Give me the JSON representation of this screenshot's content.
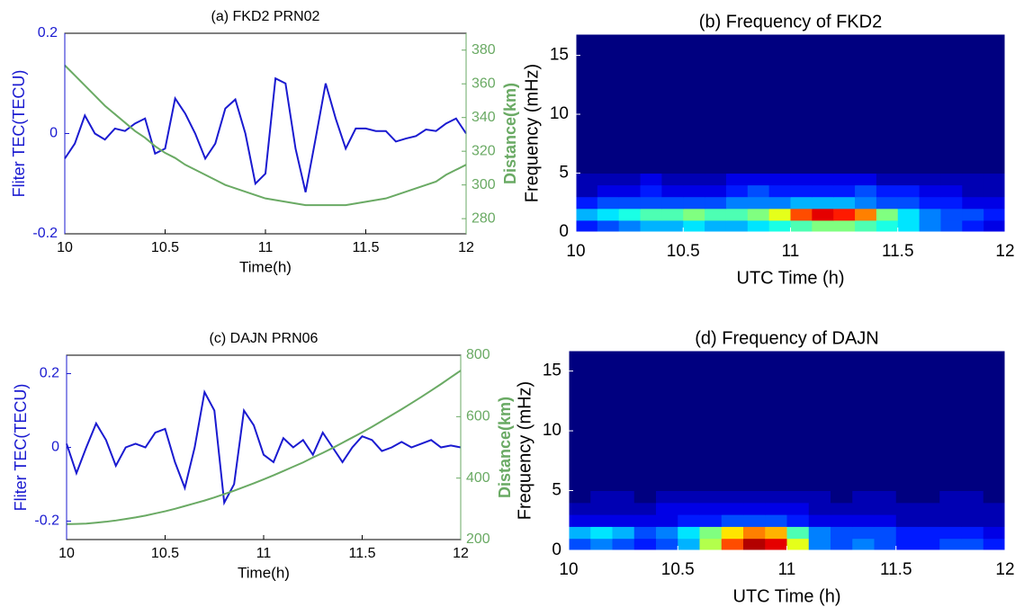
{
  "chart_data": [
    {
      "type": "line",
      "title": "(a) FKD2 PRN02",
      "xlabel": "Time(h)",
      "ylabel": "Fliter TEC(TECU)",
      "y2label": "Distance(km)",
      "x": [
        10,
        10.05,
        10.1,
        10.15,
        10.2,
        10.25,
        10.3,
        10.35,
        10.4,
        10.45,
        10.5,
        10.55,
        10.6,
        10.65,
        10.7,
        10.75,
        10.8,
        10.85,
        10.9,
        10.95,
        11,
        11.05,
        11.1,
        11.15,
        11.2,
        11.25,
        11.3,
        11.35,
        11.4,
        11.45,
        11.5,
        11.55,
        11.6,
        11.65,
        11.7,
        11.75,
        11.8,
        11.85,
        11.9,
        11.95,
        12
      ],
      "series": [
        {
          "name": "Fliter TEC",
          "color": "#1a1ad0",
          "values": [
            -0.05,
            -0.02,
            0.036,
            0,
            -0.012,
            0.01,
            0.005,
            0.02,
            0.03,
            -0.04,
            -0.03,
            0.07,
            0.04,
            0,
            -0.05,
            -0.02,
            0.05,
            0.068,
            0,
            -0.1,
            -0.08,
            0.11,
            0.1,
            -0.03,
            -0.117,
            -0.01,
            0.1,
            0.03,
            -0.03,
            0.01,
            0.01,
            0.005,
            0.005,
            -0.016,
            -0.01,
            -0.005,
            0.008,
            0.005,
            0.02,
            0.03,
            0
          ]
        },
        {
          "name": "Distance",
          "color": "#6aaa64",
          "axis": "y2",
          "values": [
            371,
            365,
            359,
            353,
            347,
            342,
            337,
            332,
            328,
            323,
            319,
            316,
            312,
            309,
            306,
            303,
            300,
            298,
            296,
            294,
            292,
            291,
            290,
            289,
            288,
            288,
            288,
            288,
            288,
            289,
            290,
            291,
            292,
            294,
            296,
            298,
            300,
            302,
            306,
            309,
            312
          ]
        }
      ],
      "xlim": [
        10,
        12
      ],
      "xticks": [
        10,
        10.5,
        11,
        11.5,
        12
      ],
      "ylim": [
        -0.2,
        0.2
      ],
      "yticks": [
        -0.2,
        0,
        0.2
      ],
      "y2lim": [
        271,
        390
      ],
      "y2ticks": [
        280,
        300,
        320,
        340,
        360,
        380
      ]
    },
    {
      "type": "heatmap",
      "title": "(b) Frequency of FKD2",
      "xlabel": "UTC Time (h)",
      "ylabel": "Frequency (mHz)",
      "colormap": "jet",
      "x_bins": [
        10,
        10.1,
        10.2,
        10.3,
        10.4,
        10.5,
        10.6,
        10.7,
        10.8,
        10.9,
        11,
        11.1,
        11.2,
        11.3,
        11.4,
        11.5,
        11.6,
        11.7,
        11.8,
        11.9,
        12
      ],
      "y_bins": [
        0,
        1,
        2,
        3,
        4,
        5,
        16.8
      ],
      "z": [
        [
          0.15,
          0.2,
          0.25,
          0.3,
          0.3,
          0.35,
          0.3,
          0.3,
          0.35,
          0.4,
          0.45,
          0.5,
          0.5,
          0.45,
          0.4,
          0.35,
          0.25,
          0.2,
          0.15,
          0.1
        ],
        [
          0.3,
          0.35,
          0.4,
          0.45,
          0.45,
          0.5,
          0.45,
          0.45,
          0.5,
          0.6,
          0.8,
          0.9,
          0.85,
          0.75,
          0.5,
          0.35,
          0.25,
          0.2,
          0.2,
          0.15
        ],
        [
          0.15,
          0.2,
          0.2,
          0.2,
          0.2,
          0.2,
          0.2,
          0.25,
          0.25,
          0.25,
          0.3,
          0.3,
          0.3,
          0.25,
          0.2,
          0.2,
          0.15,
          0.15,
          0.1,
          0.1
        ],
        [
          0.05,
          0.1,
          0.1,
          0.15,
          0.1,
          0.1,
          0.1,
          0.15,
          0.2,
          0.15,
          0.15,
          0.15,
          0.15,
          0.2,
          0.15,
          0.15,
          0.1,
          0.1,
          0.05,
          0.05
        ],
        [
          0.05,
          0.05,
          0.05,
          0.1,
          0.05,
          0.05,
          0.05,
          0.1,
          0.1,
          0.1,
          0.1,
          0.1,
          0.1,
          0.1,
          0.05,
          0.05,
          0.05,
          0.05,
          0.05,
          0.05
        ],
        [
          0,
          0,
          0,
          0,
          0,
          0,
          0,
          0,
          0,
          0,
          0,
          0,
          0,
          0,
          0,
          0,
          0,
          0,
          0,
          0
        ]
      ],
      "xlim": [
        10,
        12
      ],
      "xticks": [
        10,
        10.5,
        11,
        11.5,
        12
      ],
      "ylim": [
        0,
        16.8
      ],
      "yticks": [
        0,
        5,
        10,
        15
      ]
    },
    {
      "type": "line",
      "title": "(c) DAJN PRN06",
      "xlabel": "Time(h)",
      "ylabel": "Fliter TEC(TECU)",
      "y2label": "Distance(km)",
      "x": [
        10,
        10.05,
        10.1,
        10.15,
        10.2,
        10.25,
        10.3,
        10.35,
        10.4,
        10.45,
        10.5,
        10.55,
        10.6,
        10.65,
        10.7,
        10.75,
        10.8,
        10.85,
        10.9,
        10.95,
        11,
        11.05,
        11.1,
        11.15,
        11.2,
        11.25,
        11.3,
        11.35,
        11.4,
        11.45,
        11.5,
        11.55,
        11.6,
        11.65,
        11.7,
        11.75,
        11.8,
        11.85,
        11.9,
        11.95,
        12
      ],
      "series": [
        {
          "name": "Fliter TEC",
          "color": "#1a1ad0",
          "values": [
            0.01,
            -0.07,
            0,
            0.065,
            0.02,
            -0.05,
            0,
            0.01,
            0,
            0.04,
            0.05,
            -0.04,
            -0.11,
            0,
            0.15,
            0.1,
            -0.15,
            -0.1,
            0.1,
            0.06,
            -0.02,
            -0.04,
            0.025,
            0,
            0.02,
            -0.02,
            0.04,
            0,
            -0.04,
            0,
            0.03,
            0.02,
            -0.01,
            0,
            0.015,
            0,
            0.01,
            0.02,
            0,
            0.005,
            0
          ]
        },
        {
          "name": "Distance",
          "color": "#6aaa64",
          "axis": "y2",
          "values": [
            250,
            251,
            252,
            255,
            258,
            262,
            267,
            272,
            278,
            285,
            292,
            300,
            309,
            318,
            327,
            337,
            348,
            359,
            371,
            383,
            396,
            409,
            423,
            437,
            451,
            467,
            482,
            498,
            515,
            532,
            549,
            567,
            586,
            605,
            624,
            644,
            664,
            685,
            706,
            728,
            750
          ]
        }
      ],
      "xlim": [
        10,
        12
      ],
      "xticks": [
        10,
        10.5,
        11,
        11.5,
        12
      ],
      "ylim": [
        -0.25,
        0.25
      ],
      "yticks": [
        -0.2,
        0,
        0.2
      ],
      "y2lim": [
        200,
        800
      ],
      "y2ticks": [
        200,
        400,
        600,
        800
      ]
    },
    {
      "type": "heatmap",
      "title": "(d) Frequency of DAJN",
      "xlabel": "UTC Time (h)",
      "ylabel": "Frequency (mHz)",
      "colormap": "jet",
      "x_bins": [
        10,
        10.1,
        10.2,
        10.3,
        10.4,
        10.5,
        10.6,
        10.7,
        10.8,
        10.9,
        11,
        11.1,
        11.2,
        11.3,
        11.4,
        11.5,
        11.6,
        11.7,
        11.8,
        11.9,
        12
      ],
      "y_bins": [
        0,
        1,
        2,
        3,
        4,
        5,
        16.7
      ],
      "z": [
        [
          0.2,
          0.25,
          0.2,
          0.15,
          0.2,
          0.3,
          0.55,
          0.8,
          0.95,
          0.9,
          0.6,
          0.25,
          0.2,
          0.25,
          0.2,
          0.15,
          0.15,
          0.2,
          0.2,
          0.15
        ],
        [
          0.3,
          0.35,
          0.3,
          0.2,
          0.25,
          0.35,
          0.5,
          0.65,
          0.75,
          0.7,
          0.45,
          0.25,
          0.2,
          0.2,
          0.2,
          0.15,
          0.15,
          0.15,
          0.15,
          0.1
        ],
        [
          0.1,
          0.1,
          0.1,
          0.1,
          0.1,
          0.15,
          0.15,
          0.2,
          0.2,
          0.2,
          0.15,
          0.1,
          0.1,
          0.1,
          0.1,
          0.05,
          0.05,
          0.05,
          0.05,
          0.05
        ],
        [
          0.05,
          0.05,
          0.05,
          0.05,
          0.1,
          0.1,
          0.1,
          0.1,
          0.1,
          0.1,
          0.1,
          0.05,
          0.05,
          0.05,
          0.05,
          0.05,
          0.05,
          0.05,
          0.05,
          0.05
        ],
        [
          0,
          0.05,
          0.05,
          0,
          0.05,
          0.05,
          0.05,
          0.05,
          0.05,
          0.05,
          0.05,
          0.05,
          0,
          0.05,
          0.05,
          0,
          0,
          0.05,
          0.05,
          0
        ],
        [
          0,
          0,
          0,
          0,
          0,
          0,
          0,
          0,
          0,
          0,
          0,
          0,
          0,
          0,
          0,
          0,
          0,
          0,
          0,
          0
        ]
      ],
      "xlim": [
        10,
        12
      ],
      "xticks": [
        10,
        10.5,
        11,
        11.5,
        12
      ],
      "ylim": [
        0,
        16.7
      ],
      "yticks": [
        0,
        5,
        10,
        15
      ]
    }
  ]
}
